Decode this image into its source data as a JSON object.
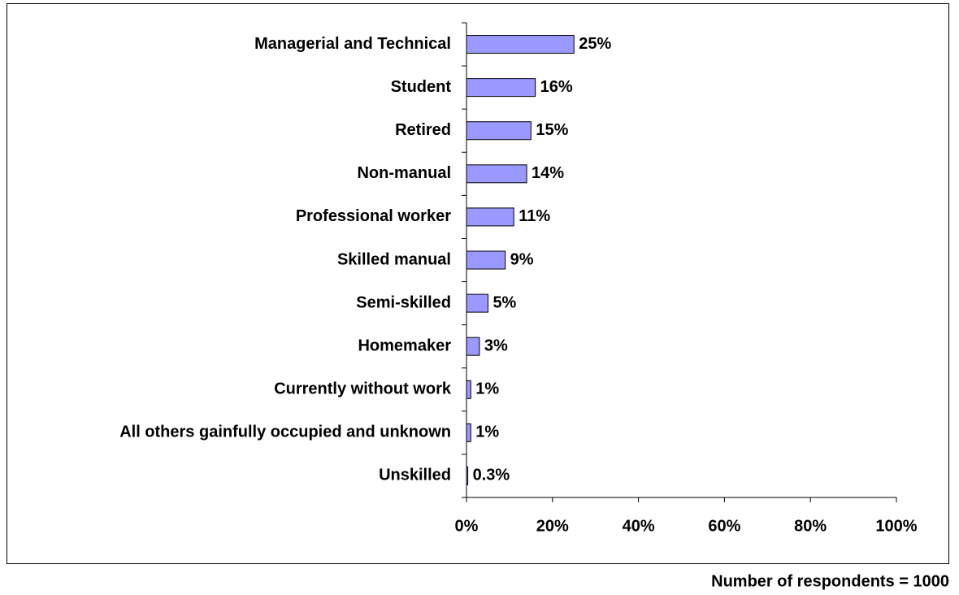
{
  "chart_data": {
    "type": "bar",
    "orientation": "horizontal",
    "categories": [
      "Managerial and Technical",
      "Student",
      "Retired",
      "Non-manual",
      "Professional worker",
      "Skilled manual",
      "Semi-skilled",
      "Homemaker",
      "Currently without work",
      "All others gainfully occupied and unknown",
      "Unskilled"
    ],
    "values": [
      25,
      16,
      15,
      14,
      11,
      9,
      5,
      3,
      1,
      1,
      0.3
    ],
    "value_labels": [
      "25%",
      "16%",
      "15%",
      "14%",
      "11%",
      "9%",
      "5%",
      "3%",
      "1%",
      "1%",
      "0.3%"
    ],
    "color": "#9999ff",
    "xlim": [
      0,
      100
    ],
    "xticks": [
      {
        "value": 0,
        "label": "0%"
      },
      {
        "value": 20,
        "label": "20%"
      },
      {
        "value": 40,
        "label": "40%"
      },
      {
        "value": 60,
        "label": "60%"
      },
      {
        "value": 80,
        "label": "80%"
      },
      {
        "value": 100,
        "label": "100%"
      }
    ],
    "annotation": "Number of respondents = 1000"
  }
}
